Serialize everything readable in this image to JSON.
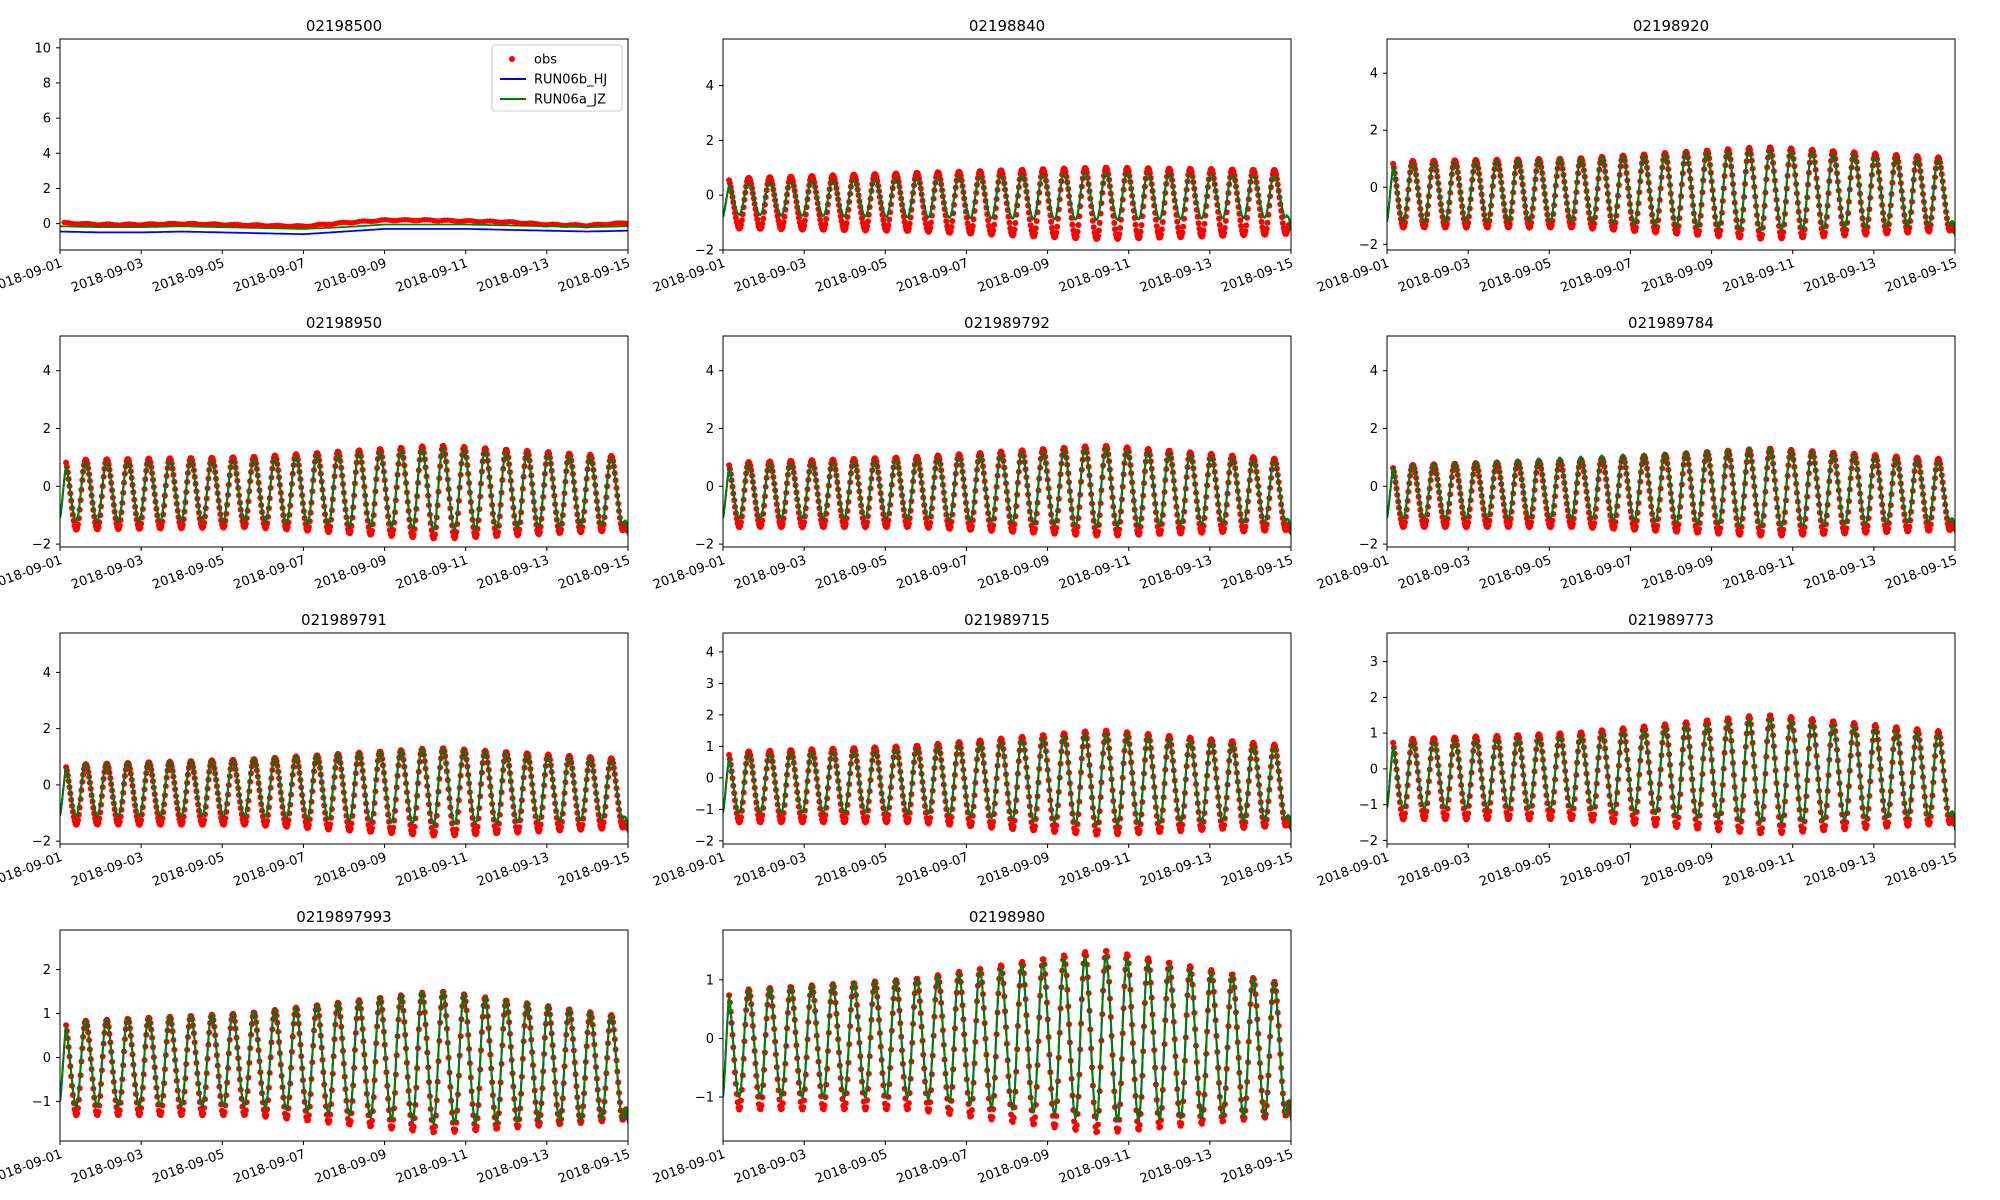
{
  "figure": {
    "x_tick_labels": [
      "2018-09-01",
      "2018-09-03",
      "2018-09-05",
      "2018-09-07",
      "2018-09-09",
      "2018-09-11",
      "2018-09-13",
      "2018-09-15"
    ],
    "x_range_days": [
      0,
      14
    ],
    "legend": {
      "placement": "top-right of first panel",
      "entries": [
        {
          "label": "obs",
          "color": "#ff0000",
          "marker": "dot"
        },
        {
          "label": "RUN06b_HJ",
          "color": "#0000ff",
          "marker": "line"
        },
        {
          "label": "RUN06a_JZ",
          "color": "#008000",
          "marker": "line"
        }
      ]
    }
  },
  "chart_data": [
    {
      "type": "line",
      "title": "02198500",
      "ylim": [
        -1.5,
        10.5
      ],
      "yticks": [
        0,
        2,
        4,
        6,
        8,
        10
      ],
      "mode": "river",
      "series": [
        {
          "name": "obs",
          "color": "#ff0000",
          "kind": "dots",
          "x": [
            0,
            1,
            2,
            3,
            4,
            5,
            6,
            7,
            8,
            9,
            10,
            11,
            12,
            13,
            14
          ],
          "y": [
            0.05,
            -0.05,
            -0.05,
            0.0,
            -0.05,
            -0.1,
            -0.15,
            0.05,
            0.2,
            0.2,
            0.15,
            0.1,
            -0.05,
            -0.1,
            0.05
          ]
        },
        {
          "name": "RUN06b_HJ",
          "color": "#0000ff",
          "kind": "line",
          "x": [
            0,
            1,
            2,
            3,
            4,
            5,
            6,
            7,
            8,
            9,
            10,
            11,
            12,
            13,
            14
          ],
          "y": [
            -0.45,
            -0.5,
            -0.5,
            -0.45,
            -0.5,
            -0.55,
            -0.6,
            -0.45,
            -0.3,
            -0.3,
            -0.3,
            -0.35,
            -0.4,
            -0.45,
            -0.4
          ]
        },
        {
          "name": "RUN06a_JZ",
          "color": "#008000",
          "kind": "line",
          "x": [
            0,
            1,
            2,
            3,
            4,
            5,
            6,
            7,
            8,
            9,
            10,
            11,
            12,
            13,
            14
          ],
          "y": [
            -0.15,
            -0.2,
            -0.2,
            -0.15,
            -0.2,
            -0.25,
            -0.3,
            -0.2,
            -0.05,
            -0.05,
            -0.05,
            -0.1,
            -0.15,
            -0.2,
            -0.15
          ]
        }
      ]
    },
    {
      "type": "line",
      "title": "02198840",
      "ylim": [
        -2,
        5.7
      ],
      "yticks": [
        -2,
        0,
        2,
        4
      ],
      "mode": "tidal",
      "tide": {
        "obs_high": [
          0.6,
          0.8,
          1.0,
          0.9
        ],
        "obs_low": [
          -1.2,
          -1.3,
          -1.6,
          -1.4
        ],
        "model_high": [
          0.4,
          0.6,
          0.8,
          0.7
        ],
        "model_low": [
          -0.7,
          -0.8,
          -0.9,
          -0.8
        ],
        "start": -0.8,
        "end": -1.3
      }
    },
    {
      "type": "line",
      "title": "02198920",
      "ylim": [
        -2.2,
        5.2
      ],
      "yticks": [
        -2,
        0,
        2,
        4
      ],
      "mode": "tidal",
      "tide": {
        "obs_high": [
          0.9,
          1.0,
          1.4,
          1.0
        ],
        "obs_low": [
          -1.4,
          -1.4,
          -1.8,
          -1.5
        ],
        "model_high": [
          0.8,
          1.0,
          1.3,
          0.9
        ],
        "model_low": [
          -1.2,
          -1.2,
          -1.5,
          -1.3
        ],
        "start": -1.2,
        "end": -1.7
      }
    },
    {
      "type": "line",
      "title": "02198950",
      "ylim": [
        -2.1,
        5.2
      ],
      "yticks": [
        -2,
        0,
        2,
        4
      ],
      "mode": "tidal",
      "tide": {
        "obs_high": [
          0.9,
          1.0,
          1.4,
          1.0
        ],
        "obs_low": [
          -1.5,
          -1.4,
          -1.8,
          -1.5
        ],
        "model_high": [
          0.8,
          0.9,
          1.3,
          0.9
        ],
        "model_low": [
          -1.2,
          -1.2,
          -1.5,
          -1.3
        ],
        "start": -1.1,
        "end": -1.7
      }
    },
    {
      "type": "line",
      "title": "021989792",
      "ylim": [
        -2.1,
        5.2
      ],
      "yticks": [
        -2,
        0,
        2,
        4
      ],
      "mode": "tidal",
      "tide": {
        "obs_high": [
          0.8,
          1.0,
          1.4,
          0.9
        ],
        "obs_low": [
          -1.4,
          -1.4,
          -1.7,
          -1.5
        ],
        "model_high": [
          0.7,
          0.9,
          1.3,
          0.8
        ],
        "model_low": [
          -1.1,
          -1.1,
          -1.4,
          -1.2
        ],
        "start": -1.1,
        "end": -1.7
      }
    },
    {
      "type": "line",
      "title": "021989784",
      "ylim": [
        -2.1,
        5.2
      ],
      "yticks": [
        -2,
        0,
        2,
        4
      ],
      "mode": "tidal",
      "tide": {
        "obs_high": [
          0.7,
          0.9,
          1.3,
          0.9
        ],
        "obs_low": [
          -1.4,
          -1.4,
          -1.7,
          -1.5
        ],
        "model_high": [
          0.7,
          1.0,
          1.3,
          0.8
        ],
        "model_low": [
          -1.1,
          -1.1,
          -1.4,
          -1.2
        ],
        "start": -1.1,
        "end": -1.6
      }
    },
    {
      "type": "line",
      "title": "021989791",
      "ylim": [
        -2.1,
        5.4
      ],
      "yticks": [
        -2,
        0,
        2,
        4
      ],
      "mode": "tidal",
      "tide": {
        "obs_high": [
          0.7,
          0.9,
          1.3,
          0.9
        ],
        "obs_low": [
          -1.4,
          -1.4,
          -1.8,
          -1.5
        ],
        "model_high": [
          0.7,
          0.9,
          1.3,
          0.8
        ],
        "model_low": [
          -1.1,
          -1.1,
          -1.4,
          -1.2
        ],
        "start": -1.1,
        "end": -1.7
      }
    },
    {
      "type": "line",
      "title": "021989715",
      "ylim": [
        -2.1,
        4.6
      ],
      "yticks": [
        -2,
        -1,
        0,
        1,
        2,
        3,
        4
      ],
      "mode": "tidal",
      "tide": {
        "obs_high": [
          0.8,
          1.0,
          1.5,
          1.0
        ],
        "obs_low": [
          -1.4,
          -1.4,
          -1.8,
          -1.5
        ],
        "model_high": [
          0.7,
          0.9,
          1.4,
          0.9
        ],
        "model_low": [
          -1.1,
          -1.1,
          -1.5,
          -1.3
        ],
        "start": -1.1,
        "end": -1.7
      }
    },
    {
      "type": "line",
      "title": "021989773",
      "ylim": [
        -2.1,
        3.8
      ],
      "yticks": [
        -2,
        -1,
        0,
        1,
        2,
        3
      ],
      "mode": "tidal",
      "tide": {
        "obs_high": [
          0.8,
          1.0,
          1.5,
          1.0
        ],
        "obs_low": [
          -1.4,
          -1.4,
          -1.8,
          -1.5
        ],
        "model_high": [
          0.7,
          0.9,
          1.4,
          0.9
        ],
        "model_low": [
          -1.1,
          -1.1,
          -1.5,
          -1.3
        ],
        "start": -1.1,
        "end": -1.7
      }
    },
    {
      "type": "line",
      "title": "0219897993",
      "ylim": [
        -1.9,
        2.9
      ],
      "yticks": [
        -1,
        0,
        1,
        2
      ],
      "mode": "tidal",
      "tide": {
        "obs_high": [
          0.8,
          1.0,
          1.5,
          0.9
        ],
        "obs_low": [
          -1.3,
          -1.3,
          -1.7,
          -1.4
        ],
        "model_high": [
          0.8,
          1.0,
          1.5,
          0.9
        ],
        "model_low": [
          -1.1,
          -1.1,
          -1.5,
          -1.4
        ],
        "start": -1.0,
        "end": -1.5
      }
    },
    {
      "type": "line",
      "title": "02198980",
      "ylim": [
        -1.75,
        1.85
      ],
      "yticks": [
        -1,
        0,
        1
      ],
      "mode": "tidal",
      "tide": {
        "obs_high": [
          0.8,
          1.0,
          1.5,
          0.9
        ],
        "obs_low": [
          -1.2,
          -1.2,
          -1.6,
          -1.3
        ],
        "model_high": [
          0.8,
          1.0,
          1.4,
          0.9
        ],
        "model_low": [
          -1.0,
          -1.0,
          -1.4,
          -1.3
        ],
        "start": -1.0,
        "end": -1.4
      }
    }
  ]
}
